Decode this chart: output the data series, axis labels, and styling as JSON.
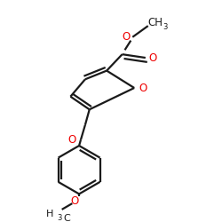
{
  "bg_color": "#ffffff",
  "bond_color": "#1a1a1a",
  "oxygen_color": "#ee0000",
  "line_width": 1.6,
  "fig_size": [
    2.5,
    2.5
  ],
  "dpi": 100,
  "xlim": [
    0,
    250
  ],
  "ylim": [
    0,
    250
  ]
}
